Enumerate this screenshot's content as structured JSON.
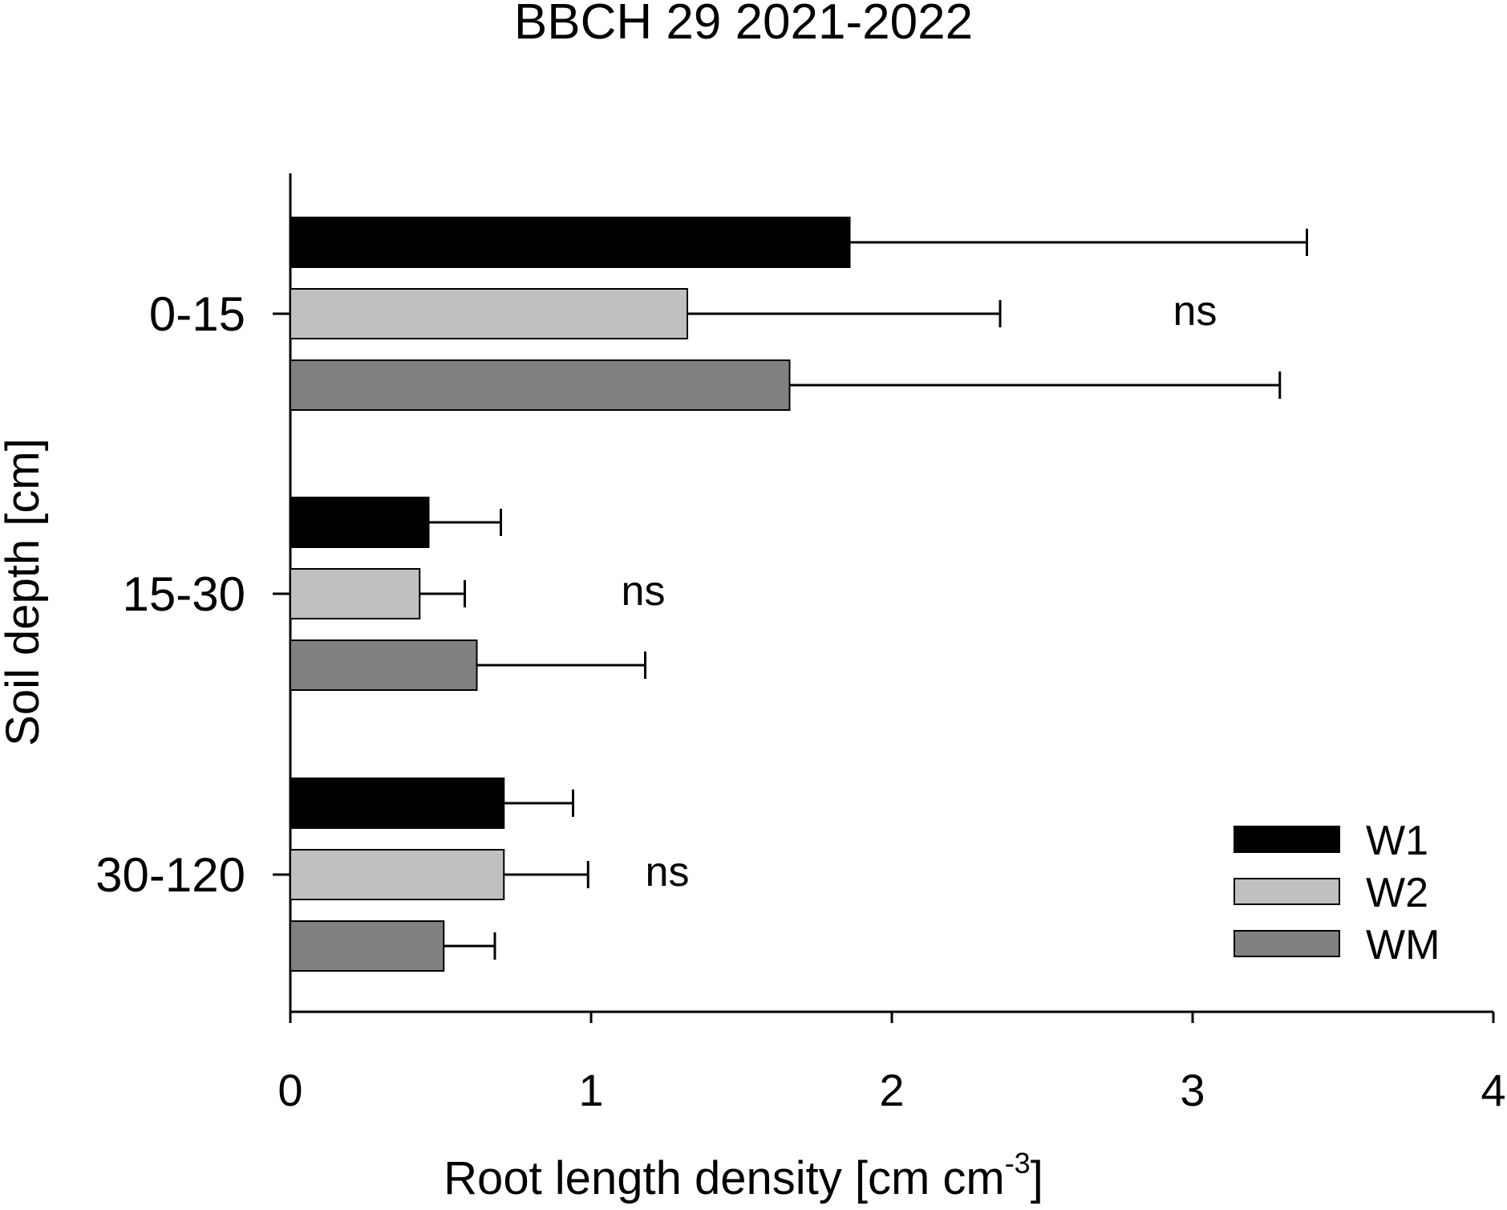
{
  "chart_data": {
    "type": "bar",
    "orientation": "horizontal",
    "title": "BBCH 29   2021-2022",
    "xlabel": "Root length density [cm cm",
    "xlabel_superscript": "-3",
    "xlabel_suffix": "]",
    "ylabel": "Soil depth [cm]",
    "xlim": [
      0,
      4
    ],
    "xticks": [
      "0",
      "1",
      "2",
      "3",
      "4"
    ],
    "grid": false,
    "legend_position": "bottom-right",
    "categories": [
      "0-15",
      "15-30",
      "30-120"
    ],
    "annotations": [
      "ns",
      "ns",
      "ns"
    ],
    "series": [
      {
        "name": "W1",
        "color": "#000000",
        "values": [
          1.86,
          0.46,
          0.71
        ],
        "errors": [
          1.52,
          0.24,
          0.23
        ]
      },
      {
        "name": "W2",
        "color": "#c0c0c0",
        "values": [
          1.32,
          0.43,
          0.71
        ],
        "errors": [
          1.04,
          0.15,
          0.28
        ]
      },
      {
        "name": "WM",
        "color": "#808080",
        "values": [
          1.66,
          0.62,
          0.51
        ],
        "errors": [
          1.63,
          0.56,
          0.17
        ]
      }
    ]
  }
}
